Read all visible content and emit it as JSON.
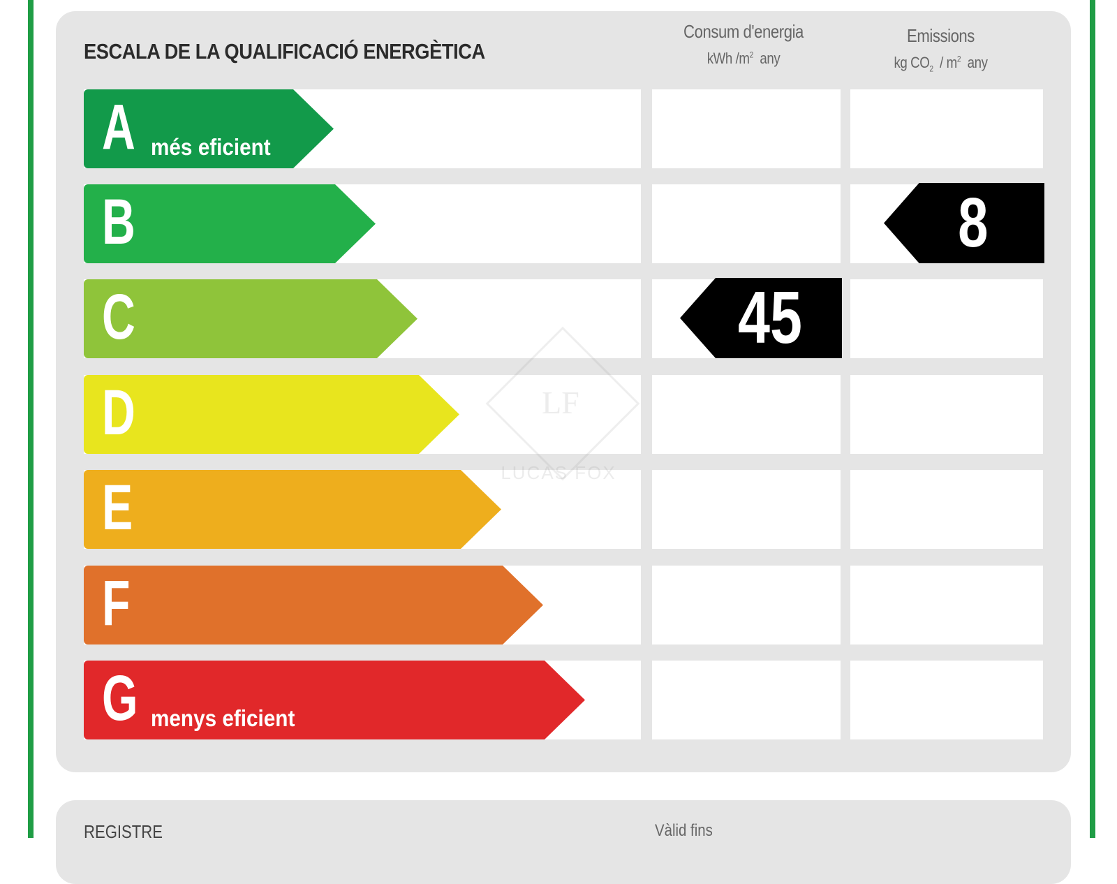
{
  "title": "ESCALA DE LA QUALIFICACIÓ ENERGÈTICA",
  "columns": {
    "energy": {
      "label": "Consum d'energia",
      "unit_main": "kWh /m",
      "unit_sup": "2",
      "unit_tail": "any"
    },
    "emissions": {
      "label": "Emissions",
      "unit_a": "kg CO",
      "unit_sub": "2",
      "unit_b": "/ m",
      "unit_sup": "2",
      "unit_tail": "any"
    }
  },
  "ratings": [
    {
      "letter": "A",
      "description": "més eficient",
      "color": "#129a4a"
    },
    {
      "letter": "B",
      "description": "",
      "color": "#23b04a"
    },
    {
      "letter": "C",
      "description": "",
      "color": "#8fc43a"
    },
    {
      "letter": "D",
      "description": "",
      "color": "#e8e51e"
    },
    {
      "letter": "E",
      "description": "",
      "color": "#eeae1d"
    },
    {
      "letter": "F",
      "description": "",
      "color": "#e0712b"
    },
    {
      "letter": "G",
      "description": "menys eficient",
      "color": "#e1282a"
    }
  ],
  "energy_value": {
    "value": "45",
    "rating": "C"
  },
  "emissions_value": {
    "value": "8",
    "rating": "B"
  },
  "watermark": {
    "mark": "LF",
    "text": "LUCAS FOX"
  },
  "footer": {
    "registre_label": "REGISTRE",
    "valid_label": "Vàlid fins"
  }
}
